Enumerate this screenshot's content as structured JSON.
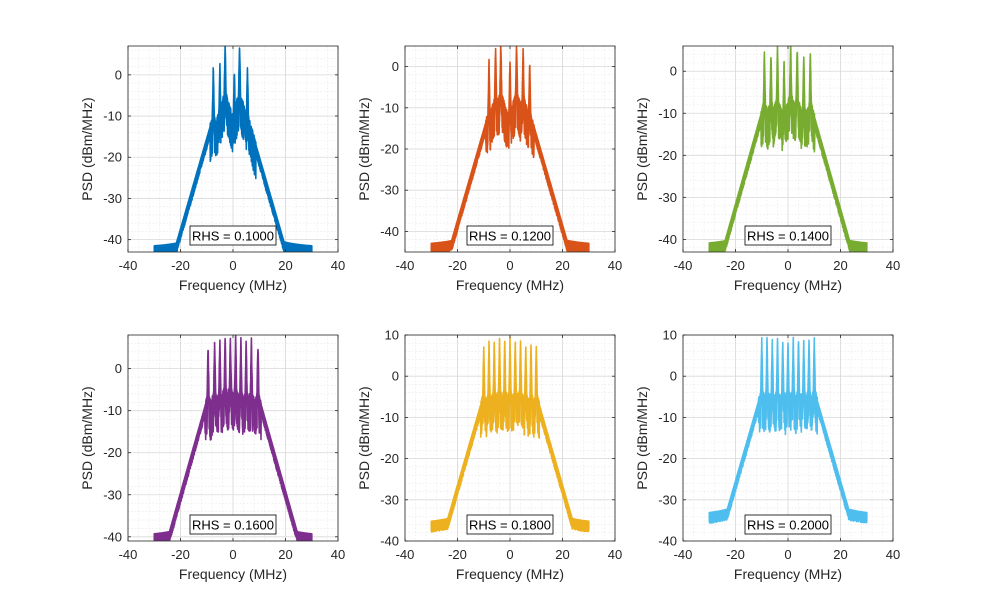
{
  "chart_data": [
    {
      "type": "line",
      "xlabel": "Frequency (MHz)",
      "ylabel": "PSD (dBm/MHz)",
      "xlim": [
        -40,
        40
      ],
      "ylim": [
        -43,
        7
      ],
      "xticks": [
        "-40",
        "-20",
        "0",
        "20",
        "40"
      ],
      "yticks": [
        "-40",
        "-30",
        "-20",
        "-10",
        "0"
      ],
      "grid": true,
      "annotation": "RHS = 0.1000",
      "series": [
        {
          "color": "#0072BD",
          "band_edges": [
            -30,
            30
          ],
          "floor_db": -43,
          "in_band_db": -24,
          "peak_x": [
            -7.5,
            -5,
            -3,
            0.5,
            2.5,
            5.5
          ],
          "peak_y": [
            1.5,
            1.5,
            7,
            1,
            7,
            1.5
          ]
        }
      ]
    },
    {
      "type": "line",
      "xlabel": "Frequency (MHz)",
      "ylabel": "PSD (dBm/MHz)",
      "xlim": [
        -40,
        40
      ],
      "ylim": [
        -45,
        5
      ],
      "xticks": [
        "-40",
        "-20",
        "0",
        "20",
        "40"
      ],
      "yticks": [
        "-40",
        "-30",
        "-20",
        "-10",
        "0"
      ],
      "grid": true,
      "annotation": "RHS = 0.1200",
      "series": [
        {
          "color": "#D95319",
          "band_edges": [
            -30,
            30
          ],
          "floor_db": -44.5,
          "in_band_db": -24,
          "peak_x": [
            -8,
            -5.5,
            -3.5,
            0,
            2.5,
            5,
            7.5
          ],
          "peak_y": [
            0.5,
            4,
            5,
            1,
            5,
            4,
            0.5
          ]
        }
      ]
    },
    {
      "type": "line",
      "xlabel": "Frequency (MHz)",
      "ylabel": "PSD (dBm/MHz)",
      "xlim": [
        -40,
        40
      ],
      "ylim": [
        -43,
        6
      ],
      "xticks": [
        "-40",
        "-20",
        "0",
        "20",
        "40"
      ],
      "yticks": [
        "-40",
        "-30",
        "-20",
        "-10",
        "0"
      ],
      "grid": true,
      "annotation": "RHS = 0.1400",
      "series": [
        {
          "color": "#77AC30",
          "band_edges": [
            -30,
            30
          ],
          "floor_db": -42.5,
          "in_band_db": -22,
          "peak_x": [
            -9,
            -6.5,
            -4,
            -1.5,
            1,
            3.5,
            6,
            8.5
          ],
          "peak_y": [
            4,
            4,
            5,
            2,
            6,
            5,
            3,
            4
          ]
        }
      ]
    },
    {
      "type": "line",
      "xlabel": "Frequency (MHz)",
      "ylabel": "PSD (dBm/MHz)",
      "xlim": [
        -40,
        40
      ],
      "ylim": [
        -41,
        8
      ],
      "xticks": [
        "-40",
        "-20",
        "0",
        "20",
        "40"
      ],
      "yticks": [
        "-40",
        "-30",
        "-20",
        "-10",
        "0"
      ],
      "grid": true,
      "annotation": "RHS = 0.1600",
      "series": [
        {
          "color": "#7E2F8E",
          "band_edges": [
            -30,
            30
          ],
          "floor_db": -41,
          "in_band_db": -20,
          "peak_x": [
            -9.5,
            -7,
            -5,
            -3,
            -1,
            1,
            3,
            5,
            7,
            9.5
          ],
          "peak_y": [
            5,
            6,
            6,
            7,
            7,
            7,
            6,
            6,
            6,
            5.5
          ]
        }
      ]
    },
    {
      "type": "line",
      "xlabel": "Frequency (MHz)",
      "ylabel": "PSD (dBm/MHz)",
      "xlim": [
        -40,
        40
      ],
      "ylim": [
        -40,
        10
      ],
      "xticks": [
        "-40",
        "-20",
        "0",
        "20",
        "40"
      ],
      "yticks": [
        "-40",
        "-30",
        "-20",
        "-10",
        "0",
        "10"
      ],
      "grid": true,
      "annotation": "RHS = 0.1800",
      "series": [
        {
          "color": "#EDB120",
          "band_edges": [
            -30,
            30
          ],
          "floor_db": -37,
          "in_band_db": -15,
          "peak_x": [
            -10,
            -8,
            -6,
            -4,
            -2,
            0,
            2,
            4,
            6,
            8,
            10
          ],
          "peak_y": [
            7,
            7,
            8,
            8,
            8,
            8,
            8,
            8,
            7,
            7,
            7
          ]
        }
      ]
    },
    {
      "type": "line",
      "xlabel": "Frequency (MHz)",
      "ylabel": "PSD (dBm/MHz)",
      "xlim": [
        -40,
        40
      ],
      "ylim": [
        -40,
        10
      ],
      "xticks": [
        "-40",
        "-20",
        "0",
        "20",
        "40"
      ],
      "yticks": [
        "-40",
        "-30",
        "-20",
        "-10",
        "0",
        "10"
      ],
      "grid": true,
      "annotation": "RHS = 0.2000",
      "series": [
        {
          "color": "#4DBEEE",
          "band_edges": [
            -30,
            30
          ],
          "floor_db": -35,
          "in_band_db": -11,
          "peak_x": [
            -10,
            -8,
            -6,
            -4,
            -2,
            0,
            2,
            4,
            6,
            8,
            10
          ],
          "peak_y": [
            8,
            8,
            8,
            8,
            8,
            8,
            8,
            8,
            8,
            8,
            8
          ]
        }
      ]
    }
  ]
}
